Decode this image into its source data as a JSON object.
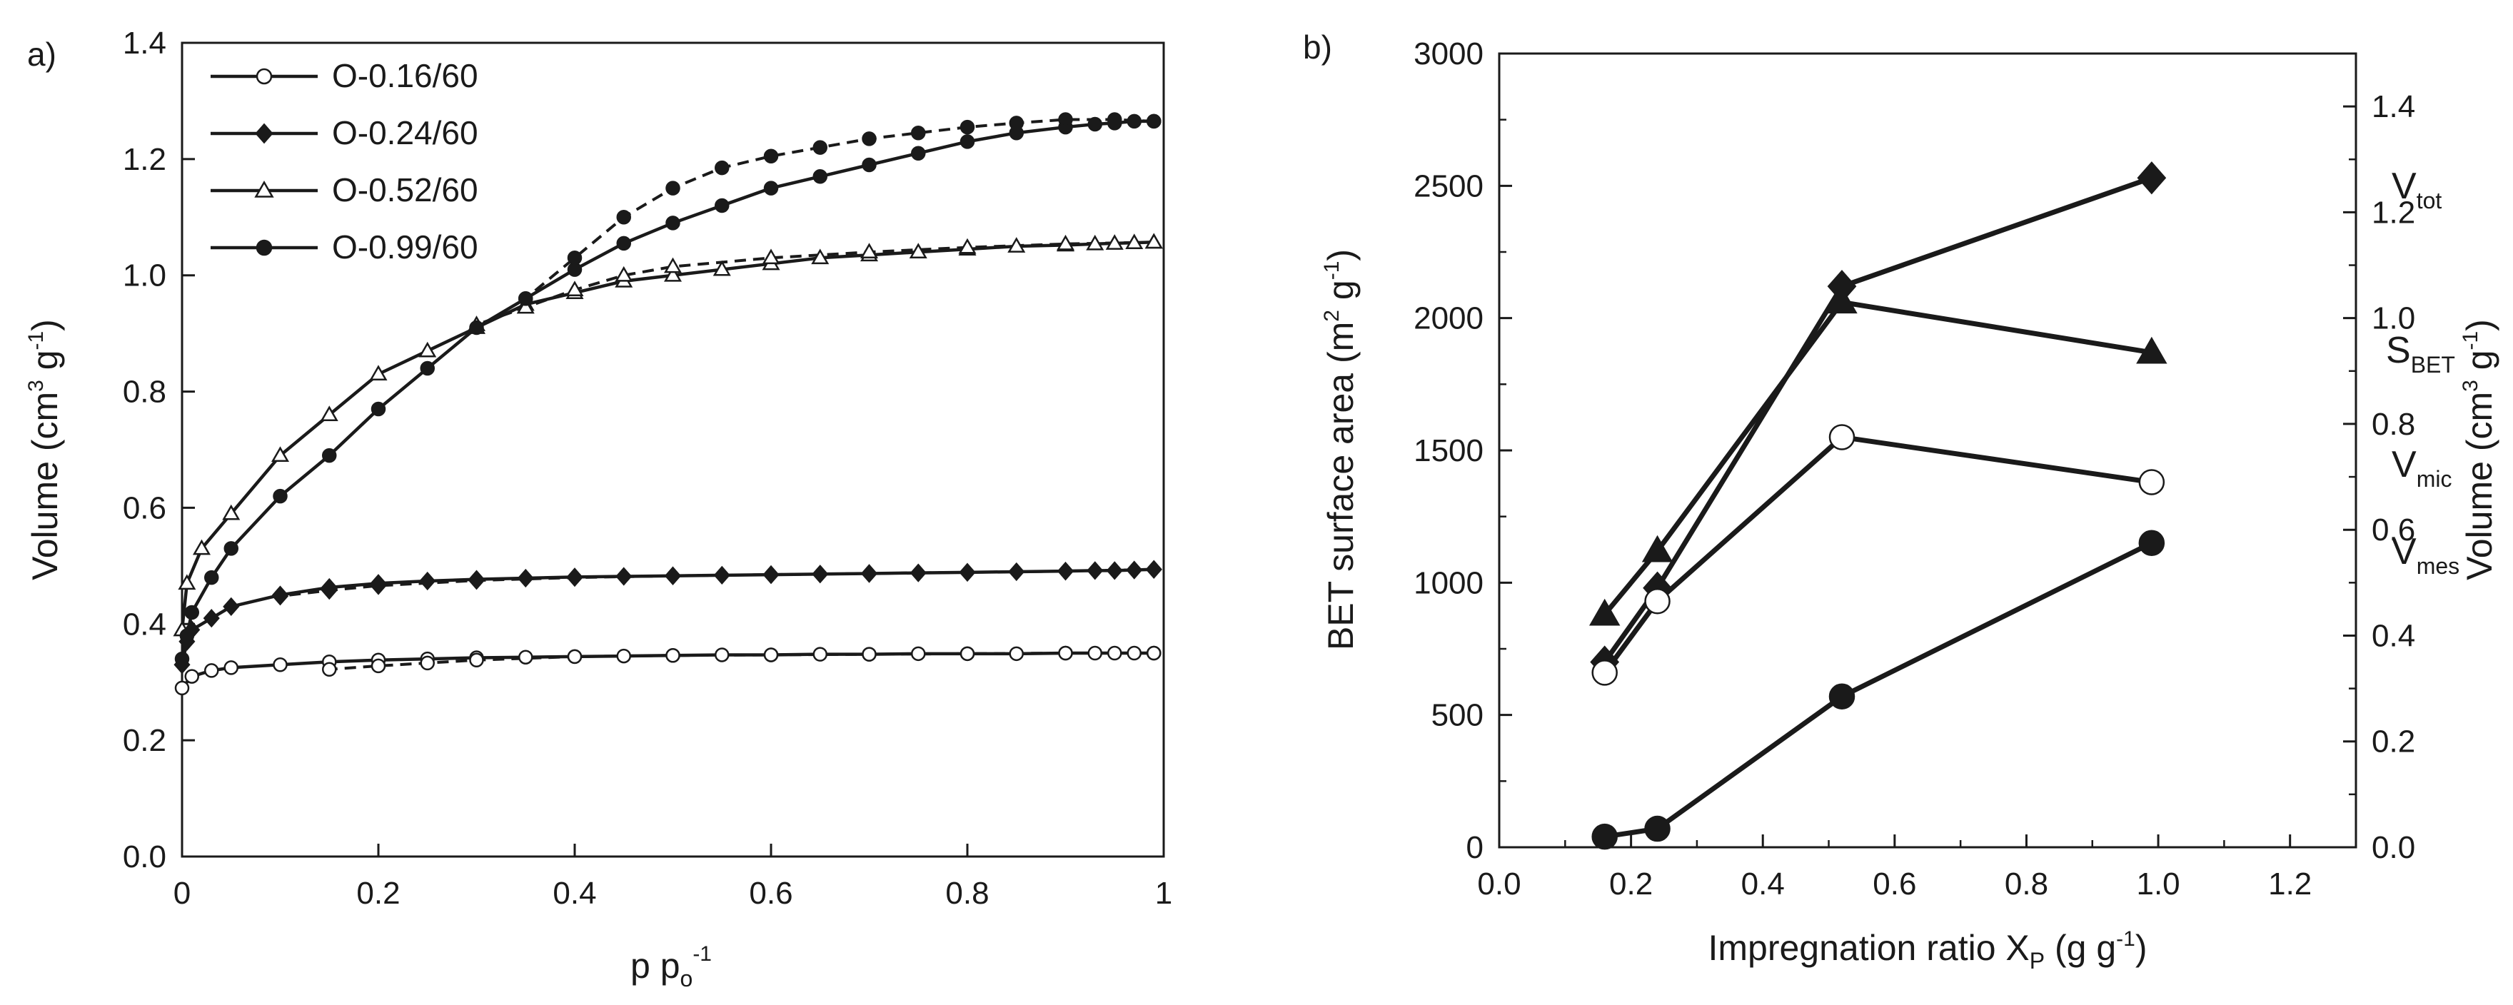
{
  "chart_data": [
    {
      "panel_label": "a)",
      "type": "line",
      "xlabel": "p p₀⁻¹",
      "xlabel_main": "p p",
      "xlabel_sub": "o",
      "xlabel_sup": "-1",
      "ylabel": "Volume (cm³ g⁻¹)",
      "ylabel_main": "Volume (cm",
      "ylabel_sup1": "3",
      "ylabel_mid": " g",
      "ylabel_sup2": "-1",
      "ylabel_end": ")",
      "xlim": [
        0,
        1
      ],
      "ylim": [
        0,
        1.4
      ],
      "xticks": [
        0,
        0.2,
        0.4,
        0.6,
        0.8,
        1
      ],
      "xtick_labels": [
        "0",
        "0.2",
        "0.4",
        "0.6",
        "0.8",
        "1"
      ],
      "yticks": [
        0,
        0.2,
        0.4,
        0.6,
        0.8,
        1.0,
        1.2,
        1.4
      ],
      "ytick_labels": [
        "0.0",
        "0.2",
        "0.4",
        "0.6",
        "0.8",
        "1.0",
        "1.2",
        "1.4"
      ],
      "legend_position": "top-left",
      "series": [
        {
          "name": "O-0.16/60",
          "marker": "open-circle",
          "adsorption": {
            "x": [
              0.0,
              0.01,
              0.03,
              0.05,
              0.1,
              0.15,
              0.2,
              0.25,
              0.3,
              0.35,
              0.4,
              0.45,
              0.5,
              0.55,
              0.6,
              0.65,
              0.7,
              0.75,
              0.8,
              0.85,
              0.9,
              0.93,
              0.95,
              0.97,
              0.99
            ],
            "y": [
              0.29,
              0.31,
              0.32,
              0.325,
              0.33,
              0.335,
              0.338,
              0.34,
              0.342,
              0.343,
              0.344,
              0.345,
              0.346,
              0.347,
              0.347,
              0.348,
              0.348,
              0.349,
              0.349,
              0.349,
              0.35,
              0.35,
              0.35,
              0.35,
              0.35
            ]
          },
          "desorption": {
            "x": [
              0.99,
              0.9,
              0.8,
              0.7,
              0.6,
              0.5,
              0.4,
              0.3,
              0.25,
              0.2,
              0.15
            ],
            "y": [
              0.35,
              0.35,
              0.349,
              0.348,
              0.347,
              0.346,
              0.344,
              0.338,
              0.333,
              0.328,
              0.322
            ]
          }
        },
        {
          "name": "O-0.24/60",
          "marker": "filled-diamond",
          "adsorption": {
            "x": [
              0.0,
              0.005,
              0.01,
              0.03,
              0.05,
              0.1,
              0.15,
              0.2,
              0.25,
              0.3,
              0.35,
              0.4,
              0.45,
              0.5,
              0.55,
              0.6,
              0.65,
              0.7,
              0.75,
              0.8,
              0.85,
              0.9,
              0.93,
              0.95,
              0.97,
              0.99
            ],
            "y": [
              0.33,
              0.37,
              0.39,
              0.41,
              0.43,
              0.45,
              0.463,
              0.47,
              0.474,
              0.477,
              0.479,
              0.481,
              0.482,
              0.483,
              0.484,
              0.485,
              0.486,
              0.487,
              0.488,
              0.489,
              0.49,
              0.491,
              0.492,
              0.492,
              0.493,
              0.494
            ]
          },
          "desorption": {
            "x": [
              0.99,
              0.9,
              0.8,
              0.7,
              0.6,
              0.5,
              0.4,
              0.3,
              0.2,
              0.15,
              0.1
            ],
            "y": [
              0.494,
              0.491,
              0.489,
              0.487,
              0.485,
              0.483,
              0.48,
              0.475,
              0.466,
              0.458,
              0.448
            ]
          }
        },
        {
          "name": "O-0.52/60",
          "marker": "open-triangle",
          "adsorption": {
            "x": [
              0.0,
              0.005,
              0.02,
              0.05,
              0.1,
              0.15,
              0.2,
              0.25,
              0.3,
              0.35,
              0.4,
              0.45,
              0.5,
              0.55,
              0.6,
              0.65,
              0.7,
              0.75,
              0.8,
              0.85,
              0.9,
              0.93,
              0.95,
              0.97,
              0.99
            ],
            "y": [
              0.39,
              0.47,
              0.53,
              0.59,
              0.69,
              0.76,
              0.83,
              0.87,
              0.91,
              0.95,
              0.97,
              0.99,
              1.0,
              1.01,
              1.02,
              1.03,
              1.035,
              1.04,
              1.045,
              1.05,
              1.052,
              1.054,
              1.055,
              1.056,
              1.057
            ]
          },
          "desorption": {
            "x": [
              0.99,
              0.9,
              0.8,
              0.7,
              0.6,
              0.5,
              0.45,
              0.4,
              0.35,
              0.3
            ],
            "y": [
              1.057,
              1.054,
              1.048,
              1.04,
              1.03,
              1.015,
              1.0,
              0.975,
              0.945,
              0.915
            ]
          }
        },
        {
          "name": "O-0.99/60",
          "marker": "filled-circle",
          "adsorption": {
            "x": [
              0.0,
              0.005,
              0.01,
              0.03,
              0.05,
              0.1,
              0.15,
              0.2,
              0.25,
              0.3,
              0.35,
              0.4,
              0.45,
              0.5,
              0.55,
              0.6,
              0.65,
              0.7,
              0.75,
              0.8,
              0.85,
              0.9,
              0.93,
              0.95,
              0.97,
              0.99
            ],
            "y": [
              0.34,
              0.38,
              0.42,
              0.48,
              0.53,
              0.62,
              0.69,
              0.77,
              0.84,
              0.91,
              0.96,
              1.01,
              1.055,
              1.09,
              1.12,
              1.15,
              1.17,
              1.19,
              1.21,
              1.23,
              1.245,
              1.255,
              1.26,
              1.262,
              1.265,
              1.265
            ]
          },
          "desorption": {
            "x": [
              0.99,
              0.95,
              0.9,
              0.85,
              0.8,
              0.75,
              0.7,
              0.65,
              0.6,
              0.55,
              0.5,
              0.45,
              0.4,
              0.35
            ],
            "y": [
              1.265,
              1.268,
              1.268,
              1.262,
              1.255,
              1.245,
              1.235,
              1.22,
              1.205,
              1.185,
              1.15,
              1.1,
              1.03,
              0.96
            ]
          }
        }
      ]
    },
    {
      "panel_label": "b)",
      "type": "line",
      "xlabel": "Impregnation ratio Xₚ (g g⁻¹)",
      "xlabel_main": "Impregnation ratio X",
      "xlabel_sub": "P",
      "xlabel_end": " (g g",
      "xlabel_sup": "-1",
      "xlabel_close": ")",
      "ylabel": "BET surface area (m² g⁻¹)",
      "ylabel_main": "BET surface area (m",
      "ylabel_sup1": "2",
      "ylabel_mid": " g",
      "ylabel_sup2": "-1",
      "ylabel_end": ")",
      "y2label": "Volume (cm³ g⁻¹)",
      "y2label_main": "Volume (cm",
      "y2label_sup1": "3",
      "y2label_mid": " g",
      "y2label_sup2": "-1",
      "y2label_end": ")",
      "xlim": [
        0,
        1.3
      ],
      "ylim": [
        0,
        3000
      ],
      "y2lim": [
        0,
        1.5
      ],
      "xticks": [
        0,
        0.2,
        0.4,
        0.6,
        0.8,
        1.0,
        1.2
      ],
      "xtick_labels": [
        "0.0",
        "0.2",
        "0.4",
        "0.6",
        "0.8",
        "1.0",
        "1.2"
      ],
      "yticks": [
        0,
        500,
        1000,
        1500,
        2000,
        2500,
        3000
      ],
      "ytick_labels": [
        "0",
        "500",
        "1000",
        "1500",
        "2000",
        "2500",
        "3000"
      ],
      "y2ticks": [
        0,
        0.2,
        0.4,
        0.6,
        0.8,
        1.0,
        1.2,
        1.4
      ],
      "y2tick_labels": [
        "0.0",
        "0.2",
        "0.4",
        "0.6",
        "0.8",
        "1.0",
        "1.2",
        "1.4"
      ],
      "x": [
        0.16,
        0.24,
        0.52,
        0.99
      ],
      "series": [
        {
          "name": "V_tot",
          "label_main": "V",
          "label_sub": "tot",
          "axis": "right",
          "marker": "filled-diamond",
          "values": [
            0.35,
            0.49,
            1.06,
            1.265
          ]
        },
        {
          "name": "S_BET",
          "label_main": "S",
          "label_sub": "BET",
          "axis": "left",
          "marker": "filled-triangle",
          "values": [
            880,
            1120,
            2060,
            1870
          ]
        },
        {
          "name": "V_mic",
          "label_main": "V",
          "label_sub": "mic",
          "axis": "right",
          "marker": "open-circle",
          "values": [
            0.33,
            0.465,
            0.775,
            0.69
          ]
        },
        {
          "name": "V_mes",
          "label_main": "V",
          "label_sub": "mes",
          "axis": "right",
          "marker": "filled-circle",
          "values": [
            0.02,
            0.035,
            0.285,
            0.575
          ]
        }
      ]
    }
  ]
}
